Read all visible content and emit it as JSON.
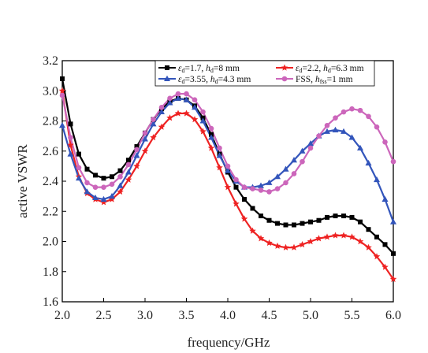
{
  "chart_data": {
    "type": "line",
    "xlabel": "frequency/GHz",
    "ylabel": "active VSWR",
    "xlim": [
      2.0,
      6.0
    ],
    "ylim": [
      1.6,
      3.2
    ],
    "xticks": [
      "2.0",
      "2.5",
      "3.0",
      "3.5",
      "4.0",
      "4.5",
      "5.0",
      "5.5",
      "6.0"
    ],
    "yticks": [
      "1.6",
      "1.8",
      "2.0",
      "2.2",
      "2.4",
      "2.6",
      "2.8",
      "3.0",
      "3.2"
    ],
    "grid": false,
    "legend_position": "top-right",
    "series": [
      {
        "name": "εd=1.7, hd=8 mm",
        "legend": {
          "eps": "ε",
          "epsSub": "d",
          "mid": "=1.7, ",
          "h": "h",
          "hSub": "d",
          "rest": "=8 mm"
        },
        "color": "#000000",
        "marker": "square",
        "x": [
          2.0,
          2.1,
          2.2,
          2.3,
          2.4,
          2.5,
          2.6,
          2.7,
          2.8,
          2.9,
          3.0,
          3.1,
          3.2,
          3.3,
          3.4,
          3.5,
          3.6,
          3.7,
          3.8,
          3.9,
          4.0,
          4.1,
          4.2,
          4.3,
          4.4,
          4.5,
          4.6,
          4.7,
          4.8,
          4.9,
          5.0,
          5.1,
          5.2,
          5.3,
          5.4,
          5.5,
          5.6,
          5.7,
          5.8,
          5.9,
          6.0
        ],
        "values": [
          3.08,
          2.78,
          2.58,
          2.48,
          2.44,
          2.42,
          2.43,
          2.47,
          2.54,
          2.63,
          2.72,
          2.81,
          2.88,
          2.93,
          2.95,
          2.94,
          2.9,
          2.82,
          2.71,
          2.58,
          2.46,
          2.36,
          2.28,
          2.22,
          2.17,
          2.14,
          2.12,
          2.11,
          2.11,
          2.12,
          2.13,
          2.14,
          2.16,
          2.17,
          2.17,
          2.16,
          2.13,
          2.08,
          2.03,
          1.98,
          1.92
        ]
      },
      {
        "name": "εd=2.2, hd=6.3 mm",
        "legend": {
          "eps": "ε",
          "epsSub": "d",
          "mid": "=2.2, ",
          "h": "h",
          "hSub": "d",
          "rest": "=6.3 mm"
        },
        "color": "#ee2222",
        "marker": "star",
        "x": [
          2.0,
          2.1,
          2.2,
          2.3,
          2.4,
          2.5,
          2.6,
          2.7,
          2.8,
          2.9,
          3.0,
          3.1,
          3.2,
          3.3,
          3.4,
          3.5,
          3.6,
          3.7,
          3.8,
          3.9,
          4.0,
          4.1,
          4.2,
          4.3,
          4.4,
          4.5,
          4.6,
          4.7,
          4.8,
          4.9,
          5.0,
          5.1,
          5.2,
          5.3,
          5.4,
          5.5,
          5.6,
          5.7,
          5.8,
          5.9,
          6.0
        ],
        "values": [
          3.0,
          2.64,
          2.43,
          2.32,
          2.28,
          2.26,
          2.28,
          2.33,
          2.41,
          2.5,
          2.6,
          2.69,
          2.76,
          2.82,
          2.85,
          2.85,
          2.81,
          2.73,
          2.62,
          2.49,
          2.36,
          2.25,
          2.15,
          2.07,
          2.02,
          1.99,
          1.97,
          1.96,
          1.96,
          1.98,
          2.0,
          2.02,
          2.03,
          2.04,
          2.04,
          2.03,
          2.0,
          1.96,
          1.9,
          1.83,
          1.75
        ]
      },
      {
        "name": "εd=3.55, hd=4.3 mm",
        "legend": {
          "eps": "ε",
          "epsSub": "d",
          "mid": "=3.55, ",
          "h": "h",
          "hSub": "d",
          "rest": "=4.3 mm"
        },
        "color": "#3355bb",
        "marker": "triangle",
        "x": [
          2.0,
          2.1,
          2.2,
          2.3,
          2.4,
          2.5,
          2.6,
          2.7,
          2.8,
          2.9,
          3.0,
          3.1,
          3.2,
          3.3,
          3.4,
          3.5,
          3.6,
          3.7,
          3.8,
          3.9,
          4.0,
          4.1,
          4.2,
          4.3,
          4.4,
          4.5,
          4.6,
          4.7,
          4.8,
          4.9,
          5.0,
          5.1,
          5.2,
          5.3,
          5.4,
          5.5,
          5.6,
          5.7,
          5.8,
          5.9,
          6.0
        ],
        "values": [
          2.77,
          2.58,
          2.42,
          2.33,
          2.29,
          2.28,
          2.3,
          2.37,
          2.46,
          2.57,
          2.68,
          2.78,
          2.86,
          2.92,
          2.95,
          2.94,
          2.89,
          2.8,
          2.69,
          2.57,
          2.47,
          2.4,
          2.36,
          2.36,
          2.37,
          2.39,
          2.43,
          2.48,
          2.54,
          2.6,
          2.65,
          2.7,
          2.73,
          2.74,
          2.73,
          2.69,
          2.62,
          2.52,
          2.41,
          2.28,
          2.13
        ]
      },
      {
        "name": "FSS, hfss=1 mm",
        "legend": {
          "eps": "",
          "epsSub": "",
          "mid": "FSS, ",
          "h": "h",
          "hSub": "fss",
          "rest": "=1 mm"
        },
        "color": "#cc66bb",
        "marker": "circle",
        "x": [
          2.0,
          2.1,
          2.2,
          2.3,
          2.4,
          2.5,
          2.6,
          2.7,
          2.8,
          2.9,
          3.0,
          3.1,
          3.2,
          3.3,
          3.4,
          3.5,
          3.6,
          3.7,
          3.8,
          3.9,
          4.0,
          4.1,
          4.2,
          4.3,
          4.4,
          4.5,
          4.6,
          4.7,
          4.8,
          4.9,
          5.0,
          5.1,
          5.2,
          5.3,
          5.4,
          5.5,
          5.6,
          5.7,
          5.8,
          5.9,
          6.0
        ],
        "values": [
          2.97,
          2.69,
          2.49,
          2.39,
          2.36,
          2.36,
          2.38,
          2.43,
          2.51,
          2.61,
          2.72,
          2.81,
          2.89,
          2.95,
          2.98,
          2.98,
          2.94,
          2.86,
          2.75,
          2.62,
          2.5,
          2.41,
          2.36,
          2.35,
          2.34,
          2.33,
          2.35,
          2.39,
          2.45,
          2.53,
          2.62,
          2.7,
          2.77,
          2.82,
          2.86,
          2.88,
          2.87,
          2.83,
          2.76,
          2.66,
          2.53
        ]
      }
    ]
  }
}
